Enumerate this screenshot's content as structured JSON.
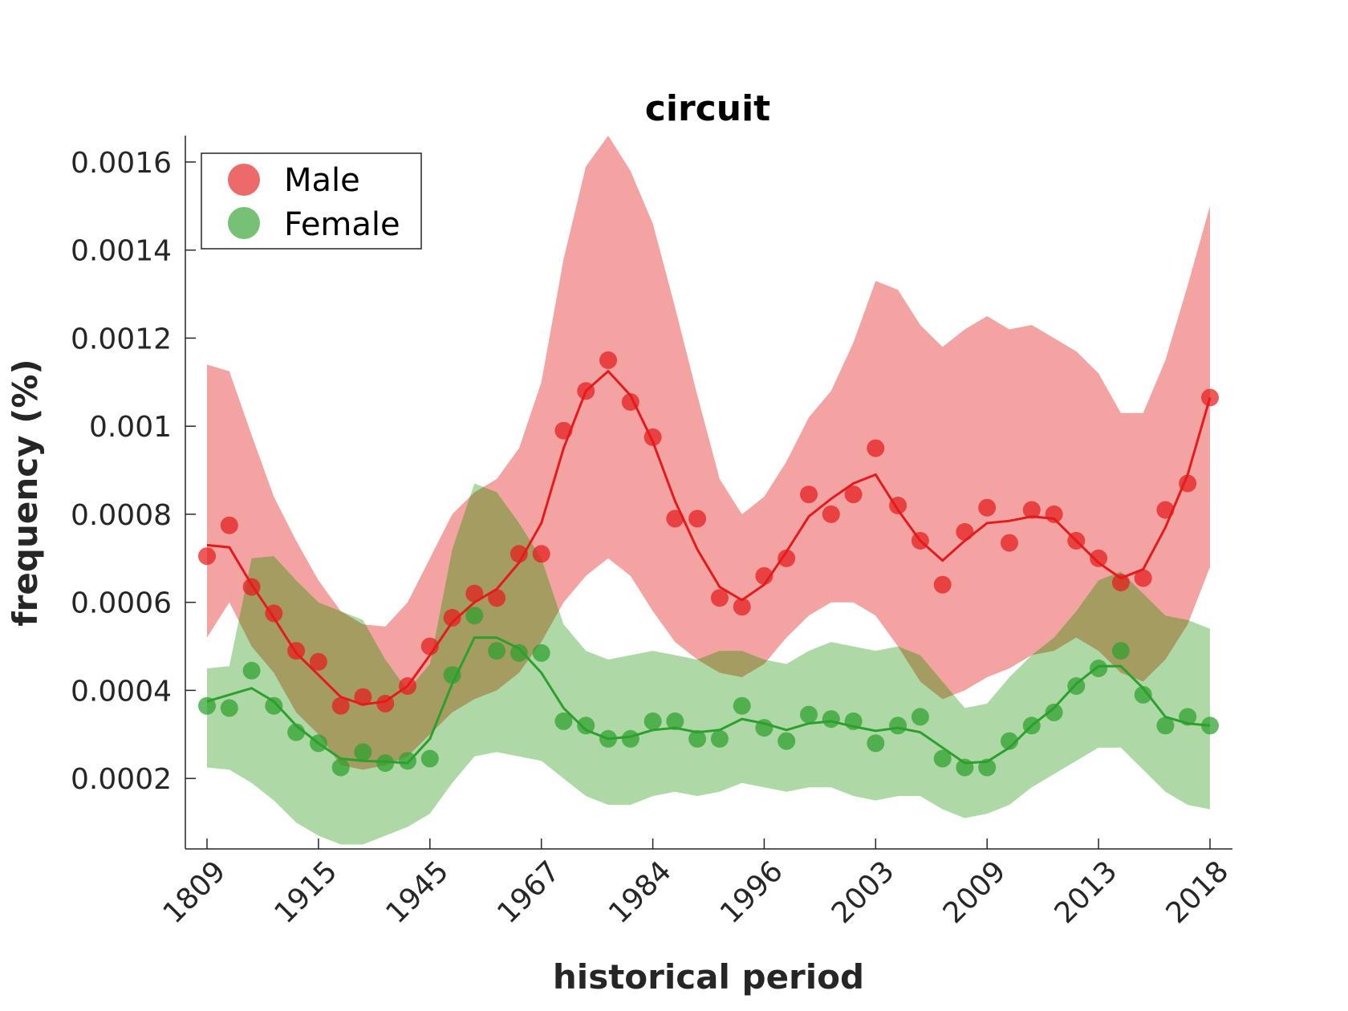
{
  "chart_data": {
    "type": "line",
    "title": "circuit",
    "xlabel": "historical period",
    "ylabel": "frequency (%)",
    "x_tick_labels": [
      "1809",
      "1915",
      "1945",
      "1967",
      "1984",
      "1996",
      "2003",
      "2009",
      "2013",
      "2018"
    ],
    "y_tick_labels": [
      "0.0002",
      "0.0004",
      "0.0006",
      "0.0008",
      "0.001",
      "0.0012",
      "0.0014",
      "0.0016"
    ],
    "y_ticks": [
      0.0002,
      0.0004,
      0.0006,
      0.0008,
      0.001,
      0.0012,
      0.0014,
      0.0016
    ],
    "ylim": [
      4e-05,
      0.00166
    ],
    "point_count": 46,
    "legend": {
      "position": "top-left",
      "items": [
        "Male",
        "Female"
      ]
    },
    "colors": {
      "male": "#e41a1c",
      "male_fill": "#f4a3a3",
      "female": "#2ca02c",
      "female_fill": "#aed9a6",
      "overlap": "#a59c62"
    },
    "series": [
      {
        "name": "Male",
        "points": [
          0.000705,
          0.000775,
          0.000635,
          0.000575,
          0.00049,
          0.000465,
          0.000365,
          0.000385,
          0.00037,
          0.00041,
          0.0005,
          0.000565,
          0.00062,
          0.00061,
          0.00071,
          0.00071,
          0.00099,
          0.00108,
          0.00115,
          0.001055,
          0.000975,
          0.00079,
          0.00079,
          0.00061,
          0.00059,
          0.00066,
          0.0007,
          0.000845,
          0.0008,
          0.000845,
          0.00095,
          0.00082,
          0.00074,
          0.00064,
          0.00076,
          0.000815,
          0.000735,
          0.00081,
          0.0008,
          0.00074,
          0.0007,
          0.000645,
          0.000655,
          0.00081,
          0.00087,
          0.001065
        ],
        "line": [
          0.00073,
          0.000725,
          0.00064,
          0.000565,
          0.000485,
          0.000435,
          0.000385,
          0.000368,
          0.000375,
          0.00041,
          0.00048,
          0.000555,
          0.0006,
          0.00063,
          0.00069,
          0.00078,
          0.00095,
          0.00108,
          0.001125,
          0.00107,
          0.000965,
          0.00083,
          0.00072,
          0.000635,
          0.000605,
          0.00064,
          0.000715,
          0.000795,
          0.000835,
          0.00087,
          0.00089,
          0.00081,
          0.00074,
          0.000695,
          0.00074,
          0.00078,
          0.000785,
          0.000795,
          0.00079,
          0.00074,
          0.00069,
          0.000655,
          0.000675,
          0.00077,
          0.00089,
          0.001065
        ],
        "band_upper": [
          0.00114,
          0.001125,
          0.00098,
          0.00084,
          0.00074,
          0.00065,
          0.00058,
          0.00055,
          0.000545,
          0.0006,
          0.0007,
          0.0008,
          0.00085,
          0.00088,
          0.00095,
          0.0011,
          0.00138,
          0.00159,
          0.00166,
          0.00158,
          0.00146,
          0.00127,
          0.00107,
          0.00088,
          0.0008,
          0.00084,
          0.00092,
          0.00102,
          0.00108,
          0.00119,
          0.00133,
          0.00131,
          0.00123,
          0.00118,
          0.00122,
          0.00125,
          0.00122,
          0.00123,
          0.0012,
          0.00117,
          0.00112,
          0.00103,
          0.00103,
          0.00115,
          0.00132,
          0.0015
        ],
        "band_lower": [
          0.00052,
          0.0006,
          0.0005,
          0.00044,
          0.00035,
          0.0003,
          0.00023,
          0.00022,
          0.00023,
          0.00025,
          0.0003,
          0.00035,
          0.00038,
          0.0004,
          0.00044,
          0.00051,
          0.0006,
          0.00066,
          0.0007,
          0.00066,
          0.00058,
          0.00051,
          0.00047,
          0.00044,
          0.00043,
          0.00046,
          0.00052,
          0.00057,
          0.0006,
          0.0006,
          0.00057,
          0.0005,
          0.00042,
          0.00038,
          0.0004,
          0.00043,
          0.00045,
          0.00048,
          0.00049,
          0.00052,
          0.00049,
          0.00044,
          0.00042,
          0.00047,
          0.00055,
          0.00068
        ]
      },
      {
        "name": "Female",
        "points": [
          0.000365,
          0.00036,
          0.000445,
          0.000365,
          0.000305,
          0.00028,
          0.000225,
          0.00026,
          0.000235,
          0.00024,
          0.000245,
          0.000435,
          0.00057,
          0.00049,
          0.000485,
          0.000485,
          0.00033,
          0.00032,
          0.00029,
          0.00029,
          0.00033,
          0.00033,
          0.00029,
          0.00029,
          0.000365,
          0.000315,
          0.000285,
          0.000345,
          0.000335,
          0.00033,
          0.00028,
          0.00032,
          0.00034,
          0.000245,
          0.000225,
          0.000225,
          0.000285,
          0.00032,
          0.00035,
          0.00041,
          0.00045,
          0.00049,
          0.00039,
          0.00032,
          0.00034,
          0.00032
        ],
        "line": [
          0.000375,
          0.00039,
          0.000405,
          0.000375,
          0.00032,
          0.00028,
          0.000245,
          0.00024,
          0.000238,
          0.000235,
          0.00029,
          0.000415,
          0.00052,
          0.00052,
          0.000495,
          0.00044,
          0.00036,
          0.00031,
          0.00029,
          0.000295,
          0.00031,
          0.000315,
          0.000305,
          0.00031,
          0.000335,
          0.000325,
          0.00031,
          0.000325,
          0.00033,
          0.000318,
          0.000308,
          0.000315,
          0.000305,
          0.00027,
          0.000235,
          0.000238,
          0.00027,
          0.00032,
          0.00036,
          0.000415,
          0.000455,
          0.000455,
          0.000405,
          0.00034,
          0.000325,
          0.00032
        ],
        "band_upper": [
          0.00045,
          0.000455,
          0.0007,
          0.000705,
          0.00065,
          0.0006,
          0.00058,
          0.00056,
          0.00047,
          0.0004,
          0.00046,
          0.00072,
          0.00087,
          0.00085,
          0.00078,
          0.0007,
          0.00055,
          0.00049,
          0.00047,
          0.00048,
          0.00049,
          0.00048,
          0.00047,
          0.00049,
          0.00049,
          0.00047,
          0.00046,
          0.00049,
          0.00051,
          0.0005,
          0.00049,
          0.0005,
          0.00048,
          0.00042,
          0.00036,
          0.00037,
          0.00043,
          0.00048,
          0.00052,
          0.00058,
          0.00065,
          0.00067,
          0.00062,
          0.00057,
          0.00056,
          0.00054
        ],
        "band_lower": [
          0.000225,
          0.00022,
          0.00019,
          0.00015,
          0.0001,
          7e-05,
          5e-05,
          5e-05,
          7e-05,
          9e-05,
          0.00012,
          0.00019,
          0.00025,
          0.00026,
          0.00025,
          0.00024,
          0.0002,
          0.00016,
          0.00014,
          0.00014,
          0.00016,
          0.00017,
          0.00016,
          0.00017,
          0.00019,
          0.00018,
          0.00017,
          0.00018,
          0.00018,
          0.00016,
          0.00015,
          0.00016,
          0.00016,
          0.00013,
          0.00011,
          0.00012,
          0.00014,
          0.00018,
          0.00021,
          0.00024,
          0.00027,
          0.00027,
          0.00022,
          0.00017,
          0.00014,
          0.00013
        ]
      }
    ]
  }
}
